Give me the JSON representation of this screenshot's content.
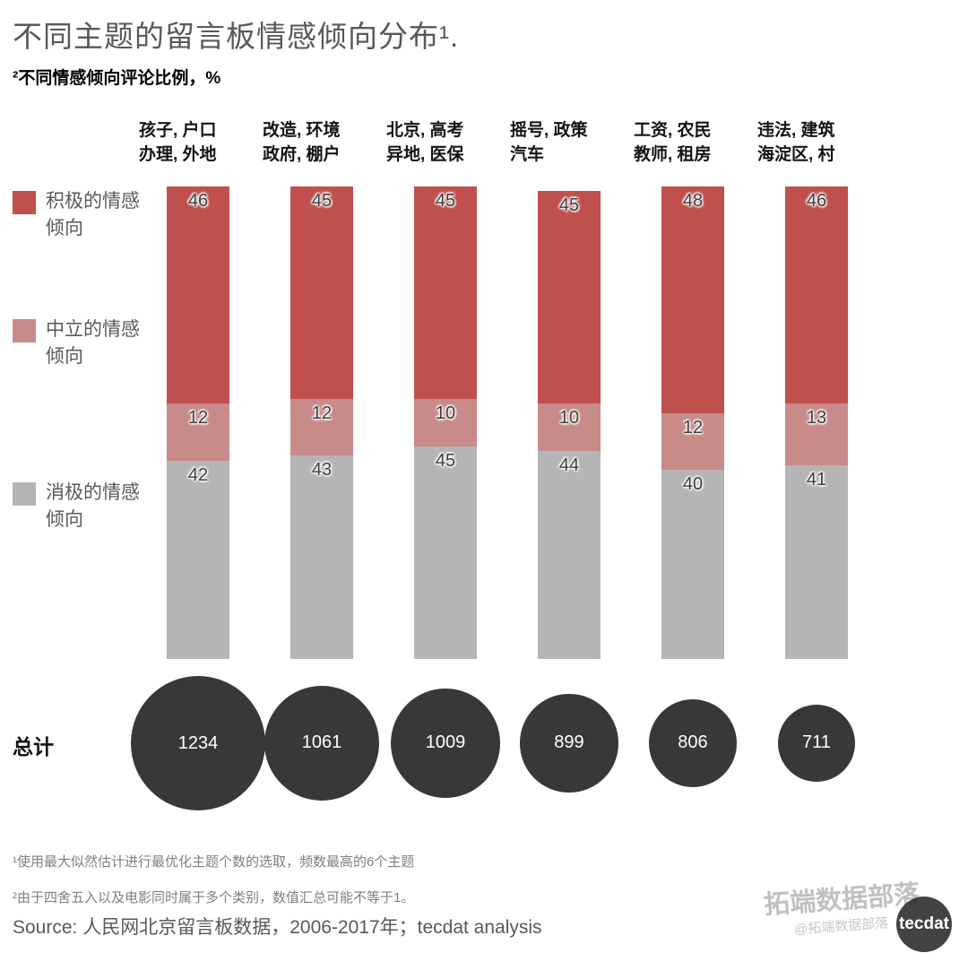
{
  "header": {
    "title": "不同主题的留言板情感倾向分布¹.",
    "subtitle": "²不同情感倾向评论比例，%"
  },
  "chart_data": {
    "type": "bar",
    "stacked": true,
    "orientation": "vertical",
    "unit": "%",
    "ylim": [
      0,
      100
    ],
    "grid": false,
    "legend_position": "left",
    "categories": [
      {
        "line1": "孩子, 户口",
        "line2": "办理, 外地"
      },
      {
        "line1": "改造, 环境",
        "line2": "政府, 棚户"
      },
      {
        "line1": "北京, 高考",
        "line2": "异地, 医保"
      },
      {
        "line1": "摇号, 政策",
        "line2": "汽车"
      },
      {
        "line1": "工资, 农民",
        "line2": "教师, 租房"
      },
      {
        "line1": "违法, 建筑",
        "line2": "海淀区, 村"
      }
    ],
    "series": [
      {
        "name": "积极的情感倾向",
        "color": "#c0504d",
        "values": [
          46,
          45,
          45,
          45,
          48,
          46
        ]
      },
      {
        "name": "中立的情感倾向",
        "color": "#c98a8a",
        "values": [
          12,
          12,
          10,
          10,
          12,
          13
        ]
      },
      {
        "name": "消极的情感倾向",
        "color": "#b5b5b5",
        "values": [
          42,
          43,
          45,
          44,
          40,
          41
        ]
      }
    ],
    "totals": {
      "label": "总计",
      "values": [
        1234,
        1061,
        1009,
        899,
        806,
        711
      ],
      "circle_color": "#383838"
    }
  },
  "legend": {
    "items": [
      {
        "label": "积极的情感倾向",
        "color": "#c0504d"
      },
      {
        "label": "中立的情感倾向",
        "color": "#c98a8a"
      },
      {
        "label": "消极的情感倾向",
        "color": "#b5b5b5"
      }
    ]
  },
  "footnotes": [
    "¹使用最大似然估计进行最优化主题个数的选取，频数最高的6个主题",
    "²由于四舍五入以及电影同时属于多个类别，数值汇总可能不等于1。"
  ],
  "source": "Source: 人民网北京留言板数据，2006-2017年；tecdat analysis",
  "watermark": {
    "brand": "拓端数据部落",
    "handle": "@拓端数据部落",
    "badge": "tecdat"
  }
}
